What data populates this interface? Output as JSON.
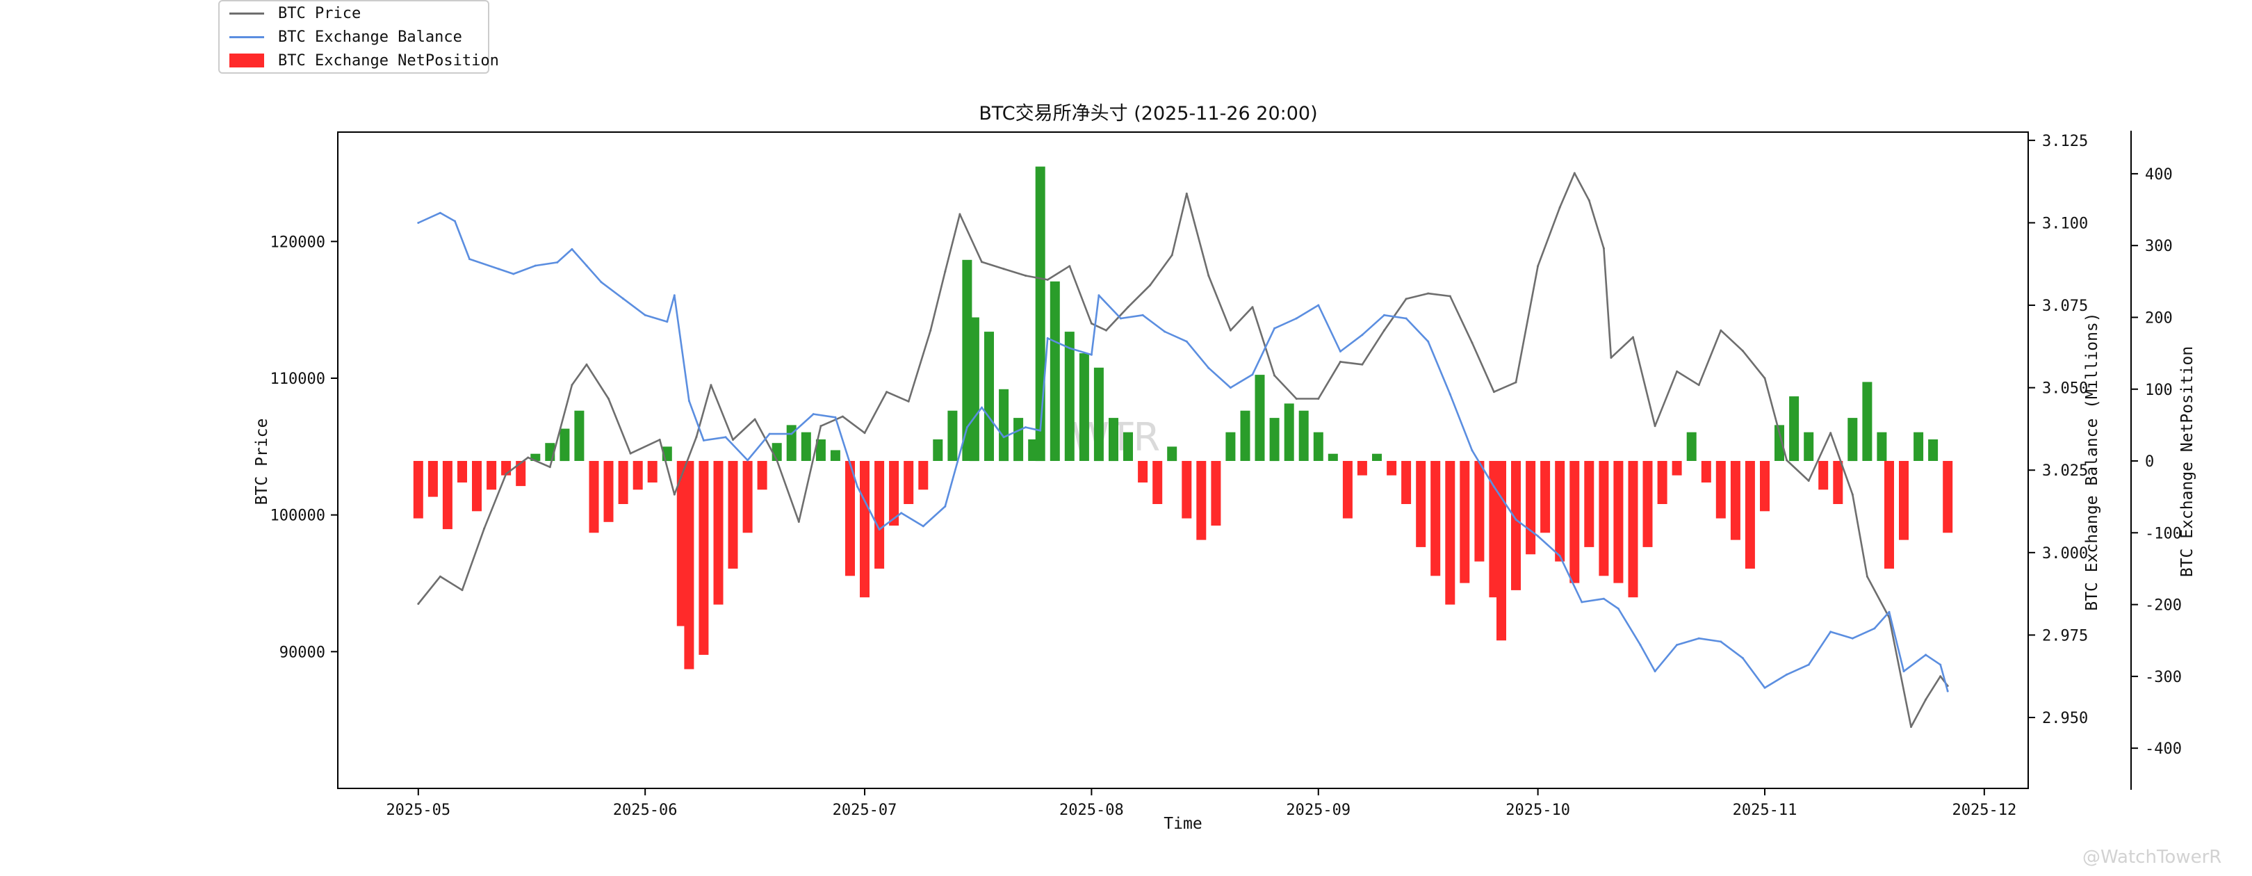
{
  "legend": {
    "price": "BTC Price",
    "balance": "BTC Exchange Balance",
    "netposition": "BTC Exchange NetPosition"
  },
  "watermark": "WTR",
  "credit": "@WatchTowerR",
  "colors": {
    "price": "#6e6e6e",
    "balance": "#5b8ee0",
    "positive": "#2a9d2a",
    "negative": "#ff2a2a"
  },
  "chart_data": {
    "type": "line",
    "title": "BTC交易所净头寸 (2025-11-26 20:00)",
    "xlabel": "Time",
    "ylabel_left": "BTC Price",
    "ylabel_right1": "BTC Exchange Balance (Millions)",
    "ylabel_right2": "BTC Exchange NetPosition",
    "x_range": [
      "2025-04-20",
      "2025-12-07"
    ],
    "x_ticks": [
      "2025-05",
      "2025-06",
      "2025-07",
      "2025-08",
      "2025-09",
      "2025-10",
      "2025-11",
      "2025-12"
    ],
    "y_left_range": [
      80000,
      128000
    ],
    "y_left_ticks": [
      90000,
      100000,
      110000,
      120000
    ],
    "y_right1_range": [
      2.9285,
      3.1275
    ],
    "y_right1_ticks": [
      2.95,
      2.975,
      3.0,
      3.025,
      3.05,
      3.075,
      3.1,
      3.125
    ],
    "y_right2_range": [
      -456,
      458
    ],
    "y_right2_ticks": [
      -400,
      -300,
      -200,
      -100,
      0,
      100,
      200,
      300,
      400
    ],
    "legend_position": "top-left",
    "grid": false,
    "series": [
      {
        "name": "BTC Price",
        "axis": "left",
        "points": [
          [
            "2025-05-01",
            93500
          ],
          [
            "2025-05-04",
            95500
          ],
          [
            "2025-05-07",
            94500
          ],
          [
            "2025-05-10",
            99000
          ],
          [
            "2025-05-13",
            103000
          ],
          [
            "2025-05-16",
            104200
          ],
          [
            "2025-05-19",
            103500
          ],
          [
            "2025-05-22",
            109500
          ],
          [
            "2025-05-24",
            111000
          ],
          [
            "2025-05-27",
            108500
          ],
          [
            "2025-05-30",
            104500
          ],
          [
            "2025-06-03",
            105500
          ],
          [
            "2025-06-05",
            101500
          ],
          [
            "2025-06-08",
            105700
          ],
          [
            "2025-06-10",
            109500
          ],
          [
            "2025-06-13",
            105500
          ],
          [
            "2025-06-16",
            107000
          ],
          [
            "2025-06-19",
            104000
          ],
          [
            "2025-06-22",
            99500
          ],
          [
            "2025-06-25",
            106500
          ],
          [
            "2025-06-28",
            107200
          ],
          [
            "2025-07-01",
            106000
          ],
          [
            "2025-07-04",
            109000
          ],
          [
            "2025-07-07",
            108300
          ],
          [
            "2025-07-10",
            113500
          ],
          [
            "2025-07-12",
            117800
          ],
          [
            "2025-07-14",
            122000
          ],
          [
            "2025-07-17",
            118500
          ],
          [
            "2025-07-20",
            118000
          ],
          [
            "2025-07-23",
            117500
          ],
          [
            "2025-07-26",
            117200
          ],
          [
            "2025-07-29",
            118200
          ],
          [
            "2025-08-01",
            114000
          ],
          [
            "2025-08-03",
            113500
          ],
          [
            "2025-08-06",
            115200
          ],
          [
            "2025-08-09",
            116800
          ],
          [
            "2025-08-12",
            119000
          ],
          [
            "2025-08-14",
            123500
          ],
          [
            "2025-08-17",
            117500
          ],
          [
            "2025-08-20",
            113500
          ],
          [
            "2025-08-23",
            115200
          ],
          [
            "2025-08-26",
            110200
          ],
          [
            "2025-08-29",
            108500
          ],
          [
            "2025-09-01",
            108500
          ],
          [
            "2025-09-04",
            111200
          ],
          [
            "2025-09-07",
            111000
          ],
          [
            "2025-09-10",
            113500
          ],
          [
            "2025-09-13",
            115800
          ],
          [
            "2025-09-16",
            116200
          ],
          [
            "2025-09-19",
            116000
          ],
          [
            "2025-09-22",
            112600
          ],
          [
            "2025-09-25",
            109000
          ],
          [
            "2025-09-28",
            109700
          ],
          [
            "2025-10-01",
            118200
          ],
          [
            "2025-10-04",
            122500
          ],
          [
            "2025-10-06",
            125000
          ],
          [
            "2025-10-08",
            123000
          ],
          [
            "2025-10-10",
            119500
          ],
          [
            "2025-10-11",
            111500
          ],
          [
            "2025-10-14",
            113000
          ],
          [
            "2025-10-17",
            106500
          ],
          [
            "2025-10-20",
            110500
          ],
          [
            "2025-10-23",
            109500
          ],
          [
            "2025-10-26",
            113500
          ],
          [
            "2025-10-29",
            112000
          ],
          [
            "2025-11-01",
            110000
          ],
          [
            "2025-11-04",
            104000
          ],
          [
            "2025-11-07",
            102500
          ],
          [
            "2025-11-10",
            106000
          ],
          [
            "2025-11-13",
            101500
          ],
          [
            "2025-11-15",
            95500
          ],
          [
            "2025-11-18",
            92500
          ],
          [
            "2025-11-21",
            84500
          ],
          [
            "2025-11-23",
            86500
          ],
          [
            "2025-11-25",
            88200
          ],
          [
            "2025-11-26",
            87500
          ]
        ]
      },
      {
        "name": "BTC Exchange Balance",
        "axis": "right1",
        "points": [
          [
            "2025-05-01",
            3.1
          ],
          [
            "2025-05-04",
            3.103
          ],
          [
            "2025-05-06",
            3.1005
          ],
          [
            "2025-05-08",
            3.089
          ],
          [
            "2025-05-12",
            3.086
          ],
          [
            "2025-05-14",
            3.0845
          ],
          [
            "2025-05-17",
            3.087
          ],
          [
            "2025-05-20",
            3.088
          ],
          [
            "2025-05-22",
            3.092
          ],
          [
            "2025-05-24",
            3.087
          ],
          [
            "2025-05-26",
            3.082
          ],
          [
            "2025-05-29",
            3.077
          ],
          [
            "2025-06-01",
            3.072
          ],
          [
            "2025-06-04",
            3.07
          ],
          [
            "2025-06-05",
            3.078
          ],
          [
            "2025-06-07",
            3.046
          ],
          [
            "2025-06-09",
            3.034
          ],
          [
            "2025-06-12",
            3.035
          ],
          [
            "2025-06-15",
            3.028
          ],
          [
            "2025-06-18",
            3.036
          ],
          [
            "2025-06-21",
            3.036
          ],
          [
            "2025-06-24",
            3.042
          ],
          [
            "2025-06-27",
            3.041
          ],
          [
            "2025-06-30",
            3.02
          ],
          [
            "2025-07-03",
            3.007
          ],
          [
            "2025-07-06",
            3.012
          ],
          [
            "2025-07-09",
            3.008
          ],
          [
            "2025-07-12",
            3.014
          ],
          [
            "2025-07-15",
            3.038
          ],
          [
            "2025-07-17",
            3.044
          ],
          [
            "2025-07-20",
            3.035
          ],
          [
            "2025-07-23",
            3.038
          ],
          [
            "2025-07-25",
            3.037
          ],
          [
            "2025-07-26",
            3.065
          ],
          [
            "2025-07-29",
            3.062
          ],
          [
            "2025-08-01",
            3.06
          ],
          [
            "2025-08-02",
            3.078
          ],
          [
            "2025-08-05",
            3.071
          ],
          [
            "2025-08-08",
            3.072
          ],
          [
            "2025-08-11",
            3.067
          ],
          [
            "2025-08-14",
            3.064
          ],
          [
            "2025-08-17",
            3.056
          ],
          [
            "2025-08-20",
            3.05
          ],
          [
            "2025-08-23",
            3.054
          ],
          [
            "2025-08-26",
            3.068
          ],
          [
            "2025-08-29",
            3.071
          ],
          [
            "2025-09-01",
            3.075
          ],
          [
            "2025-09-04",
            3.061
          ],
          [
            "2025-09-07",
            3.066
          ],
          [
            "2025-09-10",
            3.072
          ],
          [
            "2025-09-13",
            3.071
          ],
          [
            "2025-09-16",
            3.064
          ],
          [
            "2025-09-19",
            3.048
          ],
          [
            "2025-09-22",
            3.031
          ],
          [
            "2025-09-25",
            3.02
          ],
          [
            "2025-09-28",
            3.01
          ],
          [
            "2025-10-01",
            3.005
          ],
          [
            "2025-10-04",
            2.999
          ],
          [
            "2025-10-07",
            2.985
          ],
          [
            "2025-10-10",
            2.986
          ],
          [
            "2025-10-12",
            2.983
          ],
          [
            "2025-10-15",
            2.972
          ],
          [
            "2025-10-17",
            2.964
          ],
          [
            "2025-10-20",
            2.972
          ],
          [
            "2025-10-23",
            2.974
          ],
          [
            "2025-10-26",
            2.973
          ],
          [
            "2025-10-29",
            2.968
          ],
          [
            "2025-11-01",
            2.959
          ],
          [
            "2025-11-04",
            2.963
          ],
          [
            "2025-11-07",
            2.966
          ],
          [
            "2025-11-10",
            2.976
          ],
          [
            "2025-11-13",
            2.974
          ],
          [
            "2025-11-16",
            2.977
          ],
          [
            "2025-11-18",
            2.982
          ],
          [
            "2025-11-20",
            2.964
          ],
          [
            "2025-11-23",
            2.969
          ],
          [
            "2025-11-25",
            2.966
          ],
          [
            "2025-11-26",
            2.958
          ]
        ]
      },
      {
        "name": "BTC Exchange NetPosition",
        "axis": "right2",
        "type": "bar",
        "points": [
          [
            "2025-05-01",
            -80
          ],
          [
            "2025-05-03",
            -50
          ],
          [
            "2025-05-05",
            -95
          ],
          [
            "2025-05-07",
            -30
          ],
          [
            "2025-05-09",
            -70
          ],
          [
            "2025-05-11",
            -40
          ],
          [
            "2025-05-13",
            -20
          ],
          [
            "2025-05-15",
            -35
          ],
          [
            "2025-05-17",
            10
          ],
          [
            "2025-05-19",
            25
          ],
          [
            "2025-05-21",
            45
          ],
          [
            "2025-05-23",
            70
          ],
          [
            "2025-05-25",
            -100
          ],
          [
            "2025-05-27",
            -85
          ],
          [
            "2025-05-29",
            -60
          ],
          [
            "2025-05-31",
            -40
          ],
          [
            "2025-06-02",
            -30
          ],
          [
            "2025-06-04",
            20
          ],
          [
            "2025-06-06",
            -230
          ],
          [
            "2025-06-07",
            -290
          ],
          [
            "2025-06-09",
            -270
          ],
          [
            "2025-06-11",
            -200
          ],
          [
            "2025-06-13",
            -150
          ],
          [
            "2025-06-15",
            -100
          ],
          [
            "2025-06-17",
            -40
          ],
          [
            "2025-06-19",
            25
          ],
          [
            "2025-06-21",
            50
          ],
          [
            "2025-06-23",
            40
          ],
          [
            "2025-06-25",
            30
          ],
          [
            "2025-06-27",
            15
          ],
          [
            "2025-06-29",
            -160
          ],
          [
            "2025-07-01",
            -190
          ],
          [
            "2025-07-03",
            -150
          ],
          [
            "2025-07-05",
            -90
          ],
          [
            "2025-07-07",
            -60
          ],
          [
            "2025-07-09",
            -40
          ],
          [
            "2025-07-11",
            30
          ],
          [
            "2025-07-13",
            70
          ],
          [
            "2025-07-15",
            280
          ],
          [
            "2025-07-16",
            200
          ],
          [
            "2025-07-18",
            180
          ],
          [
            "2025-07-20",
            100
          ],
          [
            "2025-07-22",
            60
          ],
          [
            "2025-07-24",
            30
          ],
          [
            "2025-07-25",
            410
          ],
          [
            "2025-07-27",
            250
          ],
          [
            "2025-07-29",
            180
          ],
          [
            "2025-07-31",
            150
          ],
          [
            "2025-08-02",
            130
          ],
          [
            "2025-08-04",
            60
          ],
          [
            "2025-08-06",
            40
          ],
          [
            "2025-08-08",
            -30
          ],
          [
            "2025-08-10",
            -60
          ],
          [
            "2025-08-12",
            20
          ],
          [
            "2025-08-14",
            -80
          ],
          [
            "2025-08-16",
            -110
          ],
          [
            "2025-08-18",
            -90
          ],
          [
            "2025-08-20",
            40
          ],
          [
            "2025-08-22",
            70
          ],
          [
            "2025-08-24",
            120
          ],
          [
            "2025-08-26",
            60
          ],
          [
            "2025-08-28",
            80
          ],
          [
            "2025-08-30",
            70
          ],
          [
            "2025-09-01",
            40
          ],
          [
            "2025-09-03",
            10
          ],
          [
            "2025-09-05",
            -80
          ],
          [
            "2025-09-07",
            -20
          ],
          [
            "2025-09-09",
            10
          ],
          [
            "2025-09-11",
            -20
          ],
          [
            "2025-09-13",
            -60
          ],
          [
            "2025-09-15",
            -120
          ],
          [
            "2025-09-17",
            -160
          ],
          [
            "2025-09-19",
            -200
          ],
          [
            "2025-09-21",
            -170
          ],
          [
            "2025-09-23",
            -140
          ],
          [
            "2025-09-25",
            -190
          ],
          [
            "2025-09-26",
            -250
          ],
          [
            "2025-09-28",
            -180
          ],
          [
            "2025-09-30",
            -130
          ],
          [
            "2025-10-02",
            -100
          ],
          [
            "2025-10-04",
            -140
          ],
          [
            "2025-10-06",
            -170
          ],
          [
            "2025-10-08",
            -120
          ],
          [
            "2025-10-10",
            -160
          ],
          [
            "2025-10-12",
            -170
          ],
          [
            "2025-10-14",
            -190
          ],
          [
            "2025-10-16",
            -120
          ],
          [
            "2025-10-18",
            -60
          ],
          [
            "2025-10-20",
            -20
          ],
          [
            "2025-10-22",
            40
          ],
          [
            "2025-10-24",
            -30
          ],
          [
            "2025-10-26",
            -80
          ],
          [
            "2025-10-28",
            -110
          ],
          [
            "2025-10-30",
            -150
          ],
          [
            "2025-11-01",
            -70
          ],
          [
            "2025-11-03",
            50
          ],
          [
            "2025-11-05",
            90
          ],
          [
            "2025-11-07",
            40
          ],
          [
            "2025-11-09",
            -40
          ],
          [
            "2025-11-11",
            -60
          ],
          [
            "2025-11-13",
            60
          ],
          [
            "2025-11-15",
            110
          ],
          [
            "2025-11-17",
            40
          ],
          [
            "2025-11-18",
            -150
          ],
          [
            "2025-11-20",
            -110
          ],
          [
            "2025-11-22",
            40
          ],
          [
            "2025-11-24",
            30
          ],
          [
            "2025-11-26",
            -100
          ]
        ]
      }
    ]
  }
}
